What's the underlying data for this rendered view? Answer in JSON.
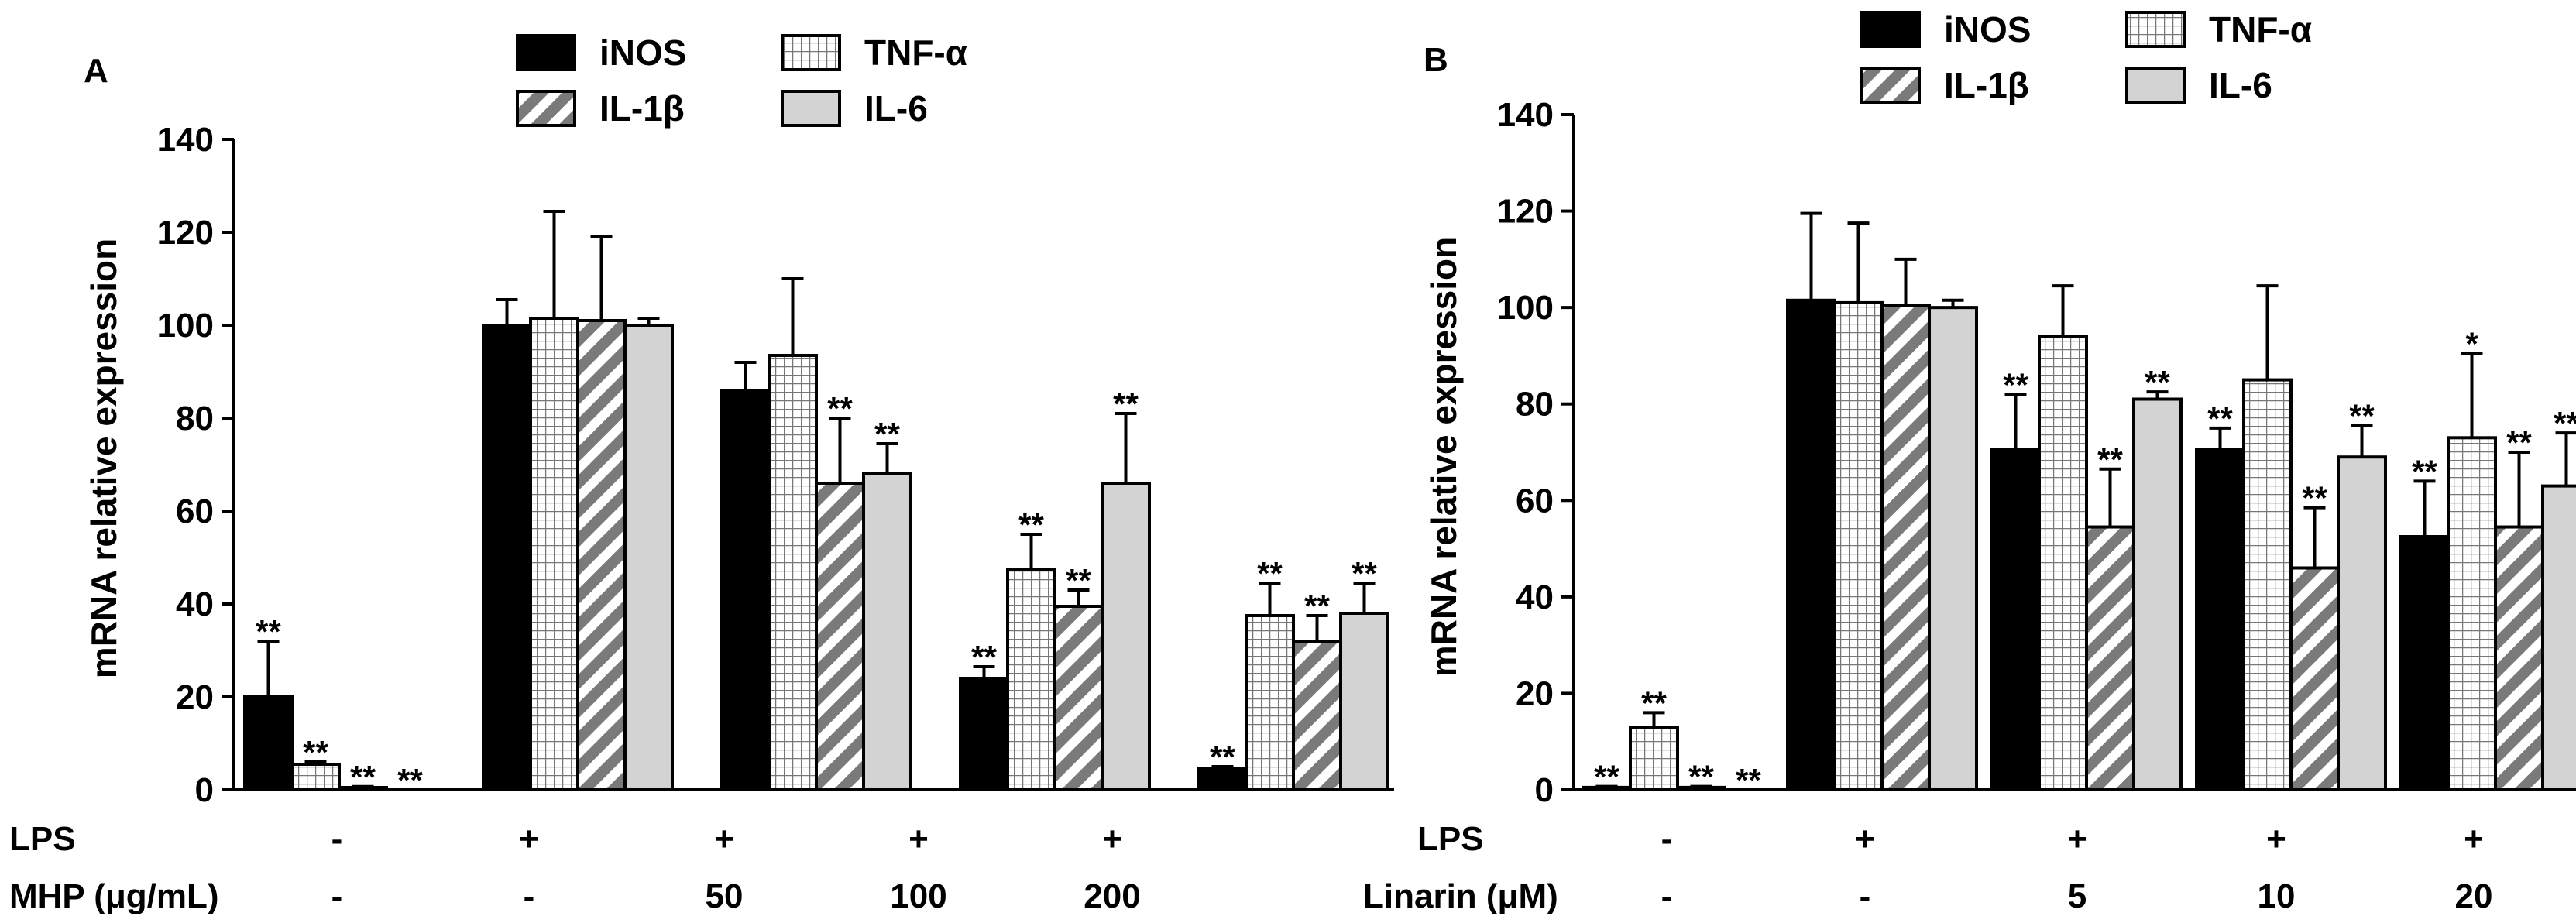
{
  "legend": {
    "items": [
      {
        "key": "iNOS",
        "label": "iNOS"
      },
      {
        "key": "IL-1β",
        "label": "IL-1β"
      },
      {
        "key": "TNF-α",
        "label": "TNF-α"
      },
      {
        "key": "IL-6",
        "label": "IL-6"
      }
    ]
  },
  "chart_data": [
    {
      "type": "bar",
      "panel_label": "A",
      "title": "",
      "ylabel": "mRNA relative expression",
      "ylim": [
        0,
        140
      ],
      "yticks": [
        0,
        20,
        40,
        60,
        80,
        100,
        120,
        140
      ],
      "grid": false,
      "legend_position": "top",
      "conditions": {
        "row1_label": "LPS",
        "row1_values": [
          "-",
          "+",
          "+",
          "+",
          "+"
        ],
        "row2_label": "MHP (μg/mL)",
        "row2_values": [
          "-",
          "-",
          "50",
          "100",
          "200"
        ]
      },
      "series": [
        {
          "name": "iNOS",
          "values": [
            20,
            100,
            86,
            24,
            4.5
          ],
          "errors": [
            12,
            5.5,
            6,
            2.5,
            0.5
          ],
          "significance": [
            "**",
            "",
            "",
            "**",
            "**"
          ]
        },
        {
          "name": "TNF-α",
          "values": [
            5.5,
            101.5,
            93.5,
            47.5,
            37.5
          ],
          "errors": [
            0.5,
            23,
            16.5,
            7.5,
            7
          ],
          "significance": [
            "**",
            "",
            "",
            "**",
            "**"
          ]
        },
        {
          "name": "IL-1β",
          "values": [
            0.5,
            101,
            66,
            39.5,
            32
          ],
          "errors": [
            0.2,
            18,
            14,
            3.5,
            5.5
          ],
          "significance": [
            "**",
            "",
            "**",
            "**",
            "**"
          ]
        },
        {
          "name": "IL-6",
          "values": [
            0,
            100,
            68,
            66,
            38
          ],
          "errors": [
            0,
            1.5,
            6.5,
            15,
            6.5
          ],
          "significance": [
            "**",
            "",
            "**",
            "**",
            "**"
          ]
        }
      ]
    },
    {
      "type": "bar",
      "panel_label": "B",
      "title": "",
      "ylabel": "mRNA relative expression",
      "ylim": [
        0,
        140
      ],
      "yticks": [
        0,
        20,
        40,
        60,
        80,
        100,
        120,
        140
      ],
      "grid": false,
      "legend_position": "top",
      "conditions": {
        "row1_label": "LPS",
        "row1_values": [
          "-",
          "+",
          "+",
          "+",
          "+"
        ],
        "row2_label": "Linarin (μM)",
        "row2_values": [
          "-",
          "-",
          "5",
          "10",
          "20"
        ]
      },
      "series": [
        {
          "name": "iNOS",
          "values": [
            0.5,
            101.5,
            70.5,
            70.5,
            52.5
          ],
          "errors": [
            0.2,
            18,
            11.5,
            4.5,
            11.5
          ],
          "significance": [
            "**",
            "",
            "**",
            "**",
            "**"
          ]
        },
        {
          "name": "TNF-α",
          "values": [
            13,
            101,
            94,
            85,
            73
          ],
          "errors": [
            3,
            16.5,
            10.5,
            19.5,
            17.5
          ],
          "significance": [
            "**",
            "",
            "",
            "",
            "*"
          ]
        },
        {
          "name": "IL-1β",
          "values": [
            0.5,
            100.5,
            54.5,
            46,
            54.5
          ],
          "errors": [
            0.2,
            9.5,
            12,
            12.5,
            15.5
          ],
          "significance": [
            "**",
            "",
            "**",
            "**",
            "**"
          ]
        },
        {
          "name": "IL-6",
          "values": [
            0,
            100,
            81,
            69,
            63
          ],
          "errors": [
            0,
            1.5,
            1.5,
            6.5,
            11
          ],
          "significance": [
            "**",
            "",
            "**",
            "**",
            "**"
          ]
        }
      ]
    }
  ]
}
